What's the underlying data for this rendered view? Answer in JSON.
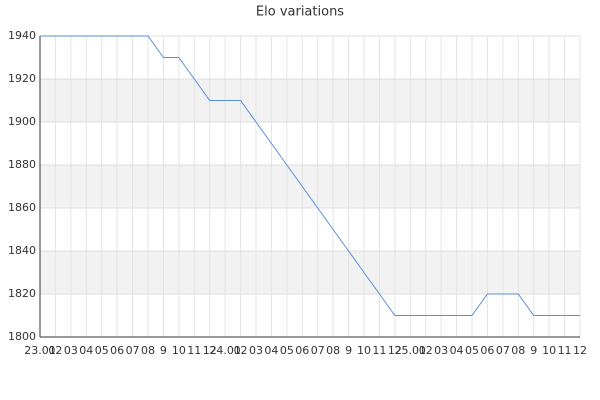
{
  "chart_data": {
    "type": "line",
    "title": "Elo variations",
    "categories": [
      "23.01",
      "02",
      "03",
      "04",
      "05",
      "06",
      "07",
      "08",
      "9",
      "10",
      "11",
      "12",
      "24.01",
      "02",
      "03",
      "04",
      "05",
      "06",
      "07",
      "08",
      "9",
      "10",
      "11",
      "12",
      "25.01",
      "02",
      "03",
      "04",
      "05",
      "06",
      "07",
      "08",
      "9",
      "10",
      "11",
      "12"
    ],
    "series": [
      {
        "name": "Elo",
        "color": "#5b8fd8",
        "values": [
          1940,
          1940,
          1940,
          1940,
          1940,
          1940,
          1940,
          1940,
          1930,
          1930,
          1920,
          1910,
          1910,
          1910,
          1900,
          1890,
          1880,
          1870,
          1860,
          1850,
          1840,
          1830,
          1820,
          1810,
          1810,
          1810,
          1810,
          1810,
          1810,
          1820,
          1820,
          1820,
          1810,
          1810,
          1810,
          1810
        ]
      }
    ],
    "ylim": [
      1800,
      1940
    ],
    "yticks": [
      1800,
      1820,
      1840,
      1860,
      1880,
      1900,
      1920,
      1940
    ],
    "grid": true
  }
}
